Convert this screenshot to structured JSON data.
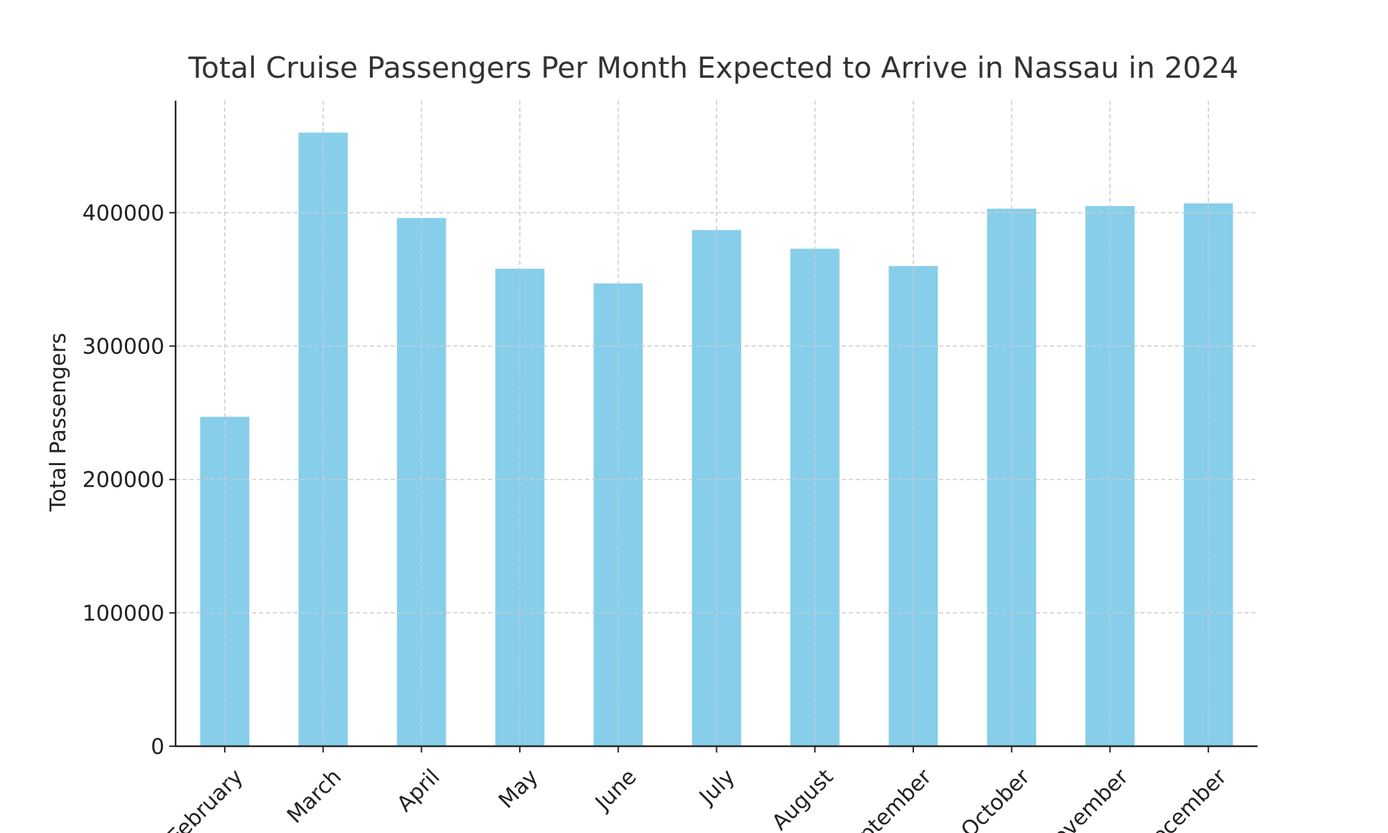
{
  "chart_data": {
    "type": "bar",
    "title": "Total Cruise Passengers Per Month Expected to Arrive in Nassau in 2024",
    "xlabel": "",
    "ylabel": "Total Passengers",
    "categories": [
      "February",
      "March",
      "April",
      "May",
      "June",
      "July",
      "August",
      "September",
      "October",
      "November",
      "December"
    ],
    "values": [
      247000,
      460000,
      396000,
      358000,
      347000,
      387000,
      373000,
      360000,
      403000,
      405000,
      407000
    ],
    "ylim": [
      0,
      484000
    ],
    "yticks": [
      0,
      100000,
      200000,
      300000,
      400000
    ],
    "grid": true,
    "legend": "none",
    "bar_color": "#87CEEB"
  }
}
